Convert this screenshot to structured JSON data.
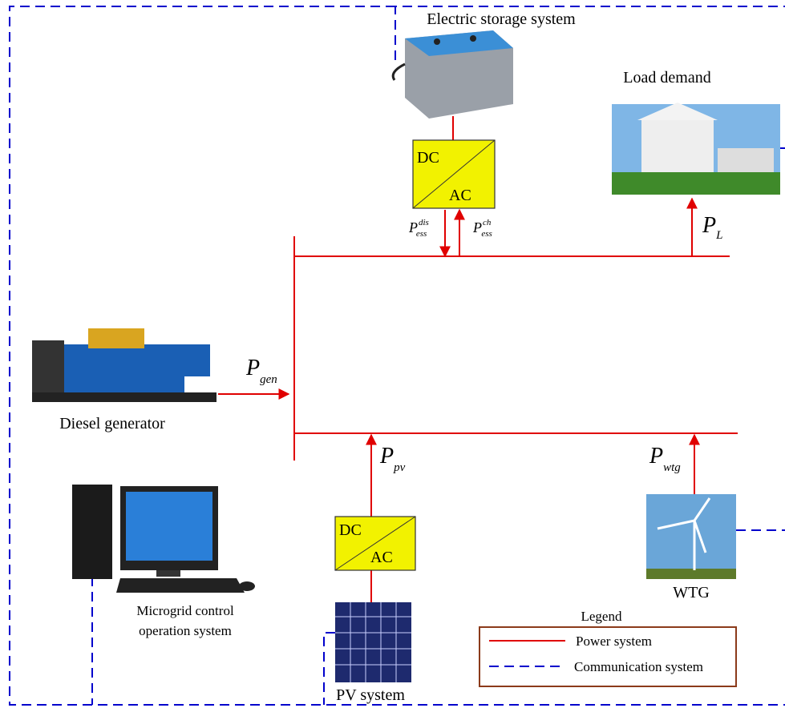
{
  "storage": {
    "label": "Electric storage system"
  },
  "load": {
    "label": "Load demand"
  },
  "converters": [
    {
      "top": "DC",
      "bottom": "AC"
    },
    {
      "top": "DC",
      "bottom": "AC"
    }
  ],
  "flows": [
    {
      "symbol": "P",
      "sub": "ess",
      "sup": "dis"
    },
    {
      "symbol": "P",
      "sub": "ess",
      "sup": "ch"
    },
    {
      "symbol": "P",
      "sub": "L"
    },
    {
      "symbol": "P",
      "sub": "gen"
    },
    {
      "symbol": "P",
      "sub": "pv"
    },
    {
      "symbol": "P",
      "sub": "wtg"
    }
  ],
  "generator": {
    "label": "Diesel generator"
  },
  "control": {
    "label_lines": [
      "Microgrid control",
      "operation system"
    ]
  },
  "wtg": {
    "label": "WTG"
  },
  "pv": {
    "label": "PV system"
  },
  "legend": {
    "title": "Legend",
    "items": [
      "Power system",
      "Communication system"
    ]
  }
}
